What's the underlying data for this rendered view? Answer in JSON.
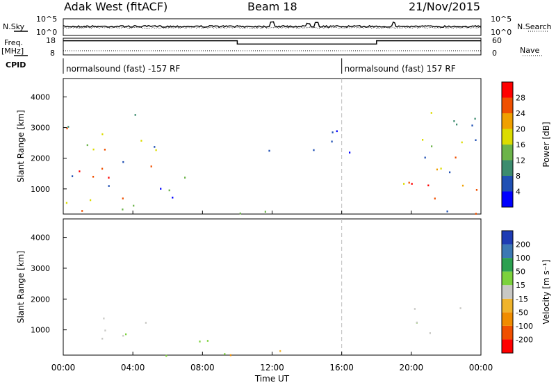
{
  "header": {
    "station": "Adak West (fitACF)",
    "beam": "Beam 18",
    "date": "21/Nov/2015"
  },
  "left_labels": {
    "nsky": "N.Sky",
    "freq_line1": "Freq.",
    "freq_line2": "[MHz]",
    "cpid": "CPID"
  },
  "right_labels": {
    "nsearch": "N.Search",
    "nave": "Nave"
  },
  "cpid_segments": [
    {
      "label": "normalsound (fast) -157 RF",
      "start": 0,
      "end": 16
    },
    {
      "label": "normalsound (fast) 157 RF",
      "start": 16,
      "end": 24
    }
  ],
  "chart_data": [
    {
      "type": "line",
      "name": "noise",
      "ylim_left": [
        "10^0",
        "10^5"
      ],
      "ylim_right": [
        "10^0",
        "10^5"
      ],
      "yticks_left": [
        "10^5",
        "10^0"
      ],
      "yticks_right": [
        "10^5",
        "10^0"
      ],
      "spikes": [
        {
          "x": 12.0,
          "value": 0.6
        },
        {
          "x": 14.1,
          "value": 0.4
        },
        {
          "x": 14.6,
          "value": 0.55
        },
        {
          "x": 19.0,
          "value": 0.45
        }
      ]
    },
    {
      "type": "line",
      "name": "frequency",
      "yticks_left": [
        "18",
        "8"
      ],
      "yticks_right": [
        "60",
        "0"
      ],
      "series": [
        {
          "role": "freq",
          "points": [
            [
              0,
              16.5
            ],
            [
              10,
              16.5
            ],
            [
              10,
              14.5
            ],
            [
              18,
              14.5
            ],
            [
              18,
              16.5
            ],
            [
              24,
              16.5
            ]
          ]
        },
        {
          "role": "nave",
          "points": [
            [
              0,
              10.5
            ],
            [
              24,
              10.5
            ]
          ]
        }
      ]
    },
    {
      "type": "heatmap",
      "name": "power",
      "xlabel": "",
      "ylabel": "Slant Range [km]",
      "xlim": [
        0,
        24
      ],
      "ylim": [
        180,
        4600
      ],
      "yticks": [
        1000,
        2000,
        3000,
        4000
      ],
      "colorbar": {
        "label": "Power [dB]",
        "ticks": [
          4,
          8,
          12,
          16,
          20,
          24,
          28
        ],
        "range": [
          0,
          32
        ],
        "colors": [
          "#0000ff",
          "#2050b4",
          "#3c8c6e",
          "#6cb44a",
          "#dcdc00",
          "#f0a000",
          "#f05000",
          "#ff0000"
        ]
      },
      "regions": [
        {
          "t0": 0.1,
          "t1": 5.3,
          "r0": 180,
          "r1": 3600,
          "kind": "edge"
        },
        {
          "t0": 0.2,
          "t1": 4.5,
          "r0": 800,
          "r1": 1700,
          "kind": "strong"
        },
        {
          "t0": 5.5,
          "t1": 9.8,
          "r0": 600,
          "r1": 1400,
          "kind": "mid"
        },
        {
          "t0": 7.0,
          "t1": 14.2,
          "r0": 180,
          "r1": 420,
          "kind": "ground"
        },
        {
          "t0": 10.5,
          "t1": 14.0,
          "r0": 780,
          "r1": 880,
          "kind": "mid"
        },
        {
          "t0": 15.2,
          "t1": 17.5,
          "r0": 1000,
          "r1": 1150,
          "kind": "mid"
        },
        {
          "t0": 11.0,
          "t1": 17.5,
          "r0": 2200,
          "r1": 3000,
          "kind": "weak"
        },
        {
          "t0": 19.5,
          "t1": 24.0,
          "r0": 180,
          "r1": 3600,
          "kind": "edge"
        },
        {
          "t0": 19.6,
          "t1": 24.0,
          "r0": 700,
          "r1": 1900,
          "kind": "strong"
        }
      ]
    },
    {
      "type": "heatmap",
      "name": "velocity",
      "xlabel": "Time UT",
      "ylabel": "Slant Range [km]",
      "xlim": [
        0,
        24
      ],
      "ylim": [
        180,
        4600
      ],
      "yticks": [
        1000,
        2000,
        3000,
        4000
      ],
      "xticks": [
        "00:00",
        "04:00",
        "08:00",
        "12:00",
        "16:00",
        "20:00",
        "00:00"
      ],
      "colorbar": {
        "label": "Velocity [m s⁻¹]",
        "ticks": [
          "200",
          "100",
          "50",
          "15",
          "-15",
          "-50",
          "-100",
          "-200"
        ],
        "colors": [
          "#1e3cb4",
          "#3c78b4",
          "#2ca050",
          "#7cd23c",
          "#c8c8c4",
          "#f0b42c",
          "#f08c00",
          "#f05000",
          "#ff0000"
        ]
      },
      "regions": [
        {
          "t0": 0.1,
          "t1": 5.3,
          "r0": 700,
          "r1": 1700,
          "kind": "gray"
        },
        {
          "t0": 5.0,
          "t1": 9.5,
          "r0": 180,
          "r1": 900,
          "kind": "green"
        },
        {
          "t0": 7.5,
          "t1": 16.0,
          "r0": 180,
          "r1": 350,
          "kind": "orange"
        },
        {
          "t0": 15.2,
          "t1": 17.5,
          "r0": 1000,
          "r1": 1150,
          "kind": "orange"
        },
        {
          "t0": 19.6,
          "t1": 24.0,
          "r0": 700,
          "r1": 1800,
          "kind": "gray"
        }
      ]
    }
  ]
}
